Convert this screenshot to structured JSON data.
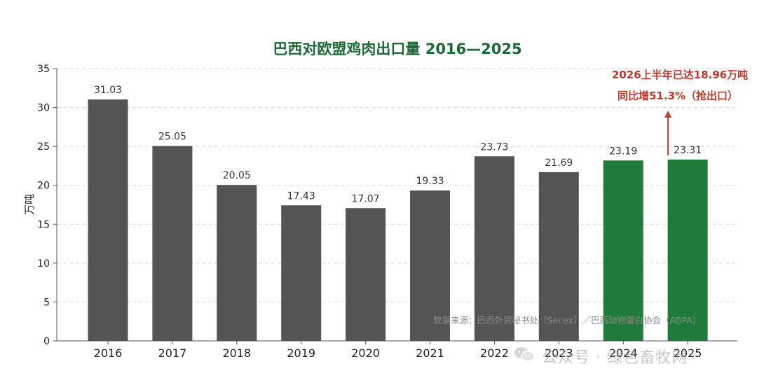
{
  "chart_data": {
    "type": "bar",
    "title": "巴西对欧盟鸡肉出口量 2016—2025",
    "ylabel": "万吨",
    "xlabel": "",
    "ylim": [
      0,
      35
    ],
    "yticks": [
      0,
      5,
      10,
      15,
      20,
      25,
      30,
      35
    ],
    "grid": true,
    "categories": [
      "2016",
      "2017",
      "2018",
      "2019",
      "2020",
      "2021",
      "2022",
      "2023",
      "2024",
      "2025"
    ],
    "values": [
      31.03,
      25.05,
      20.05,
      17.43,
      17.07,
      19.33,
      23.73,
      21.69,
      23.19,
      23.31
    ],
    "data_labels": [
      "31.03",
      "25.05",
      "20.05",
      "17.43",
      "17.07",
      "19.33",
      "23.73",
      "21.69",
      "23.19",
      "23.31"
    ],
    "colors": {
      "default_bar": "#545454",
      "highlight_bar": "#1e7b3a",
      "title": "#1a6b35",
      "annotation": "#c0392b"
    },
    "highlight_categories": [
      "2024",
      "2025"
    ],
    "annotation": {
      "target_category": "2025",
      "line1": "2026上半年已达18.96万吨",
      "line2": "同比增51.3%（抢出口）"
    },
    "source": "数据来源：巴西外贸秘书处（Secex）／巴西动物蛋白协会（ABPA）"
  },
  "watermark": {
    "text": "公众号 · 绿色畜牧网",
    "icon": "wechat-icon"
  }
}
